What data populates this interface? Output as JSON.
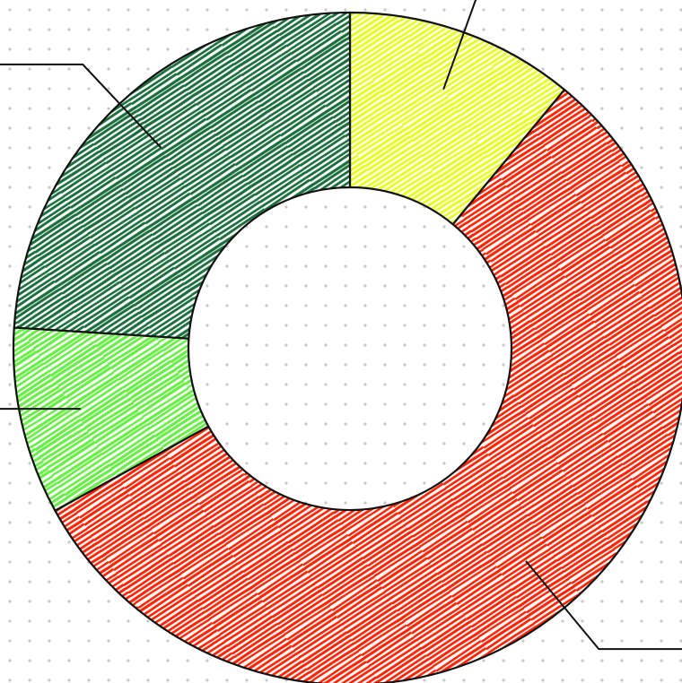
{
  "chart_data": {
    "type": "pie",
    "style": "donut",
    "hatched": true,
    "background": "dotted",
    "slices": [
      {
        "value": 11,
        "color": "#e6ff1a"
      },
      {
        "value": 56,
        "color": "#ff2200"
      },
      {
        "value": 9,
        "color": "#66ee44"
      },
      {
        "value": 24,
        "color": "#1a6e3c"
      }
    ]
  }
}
